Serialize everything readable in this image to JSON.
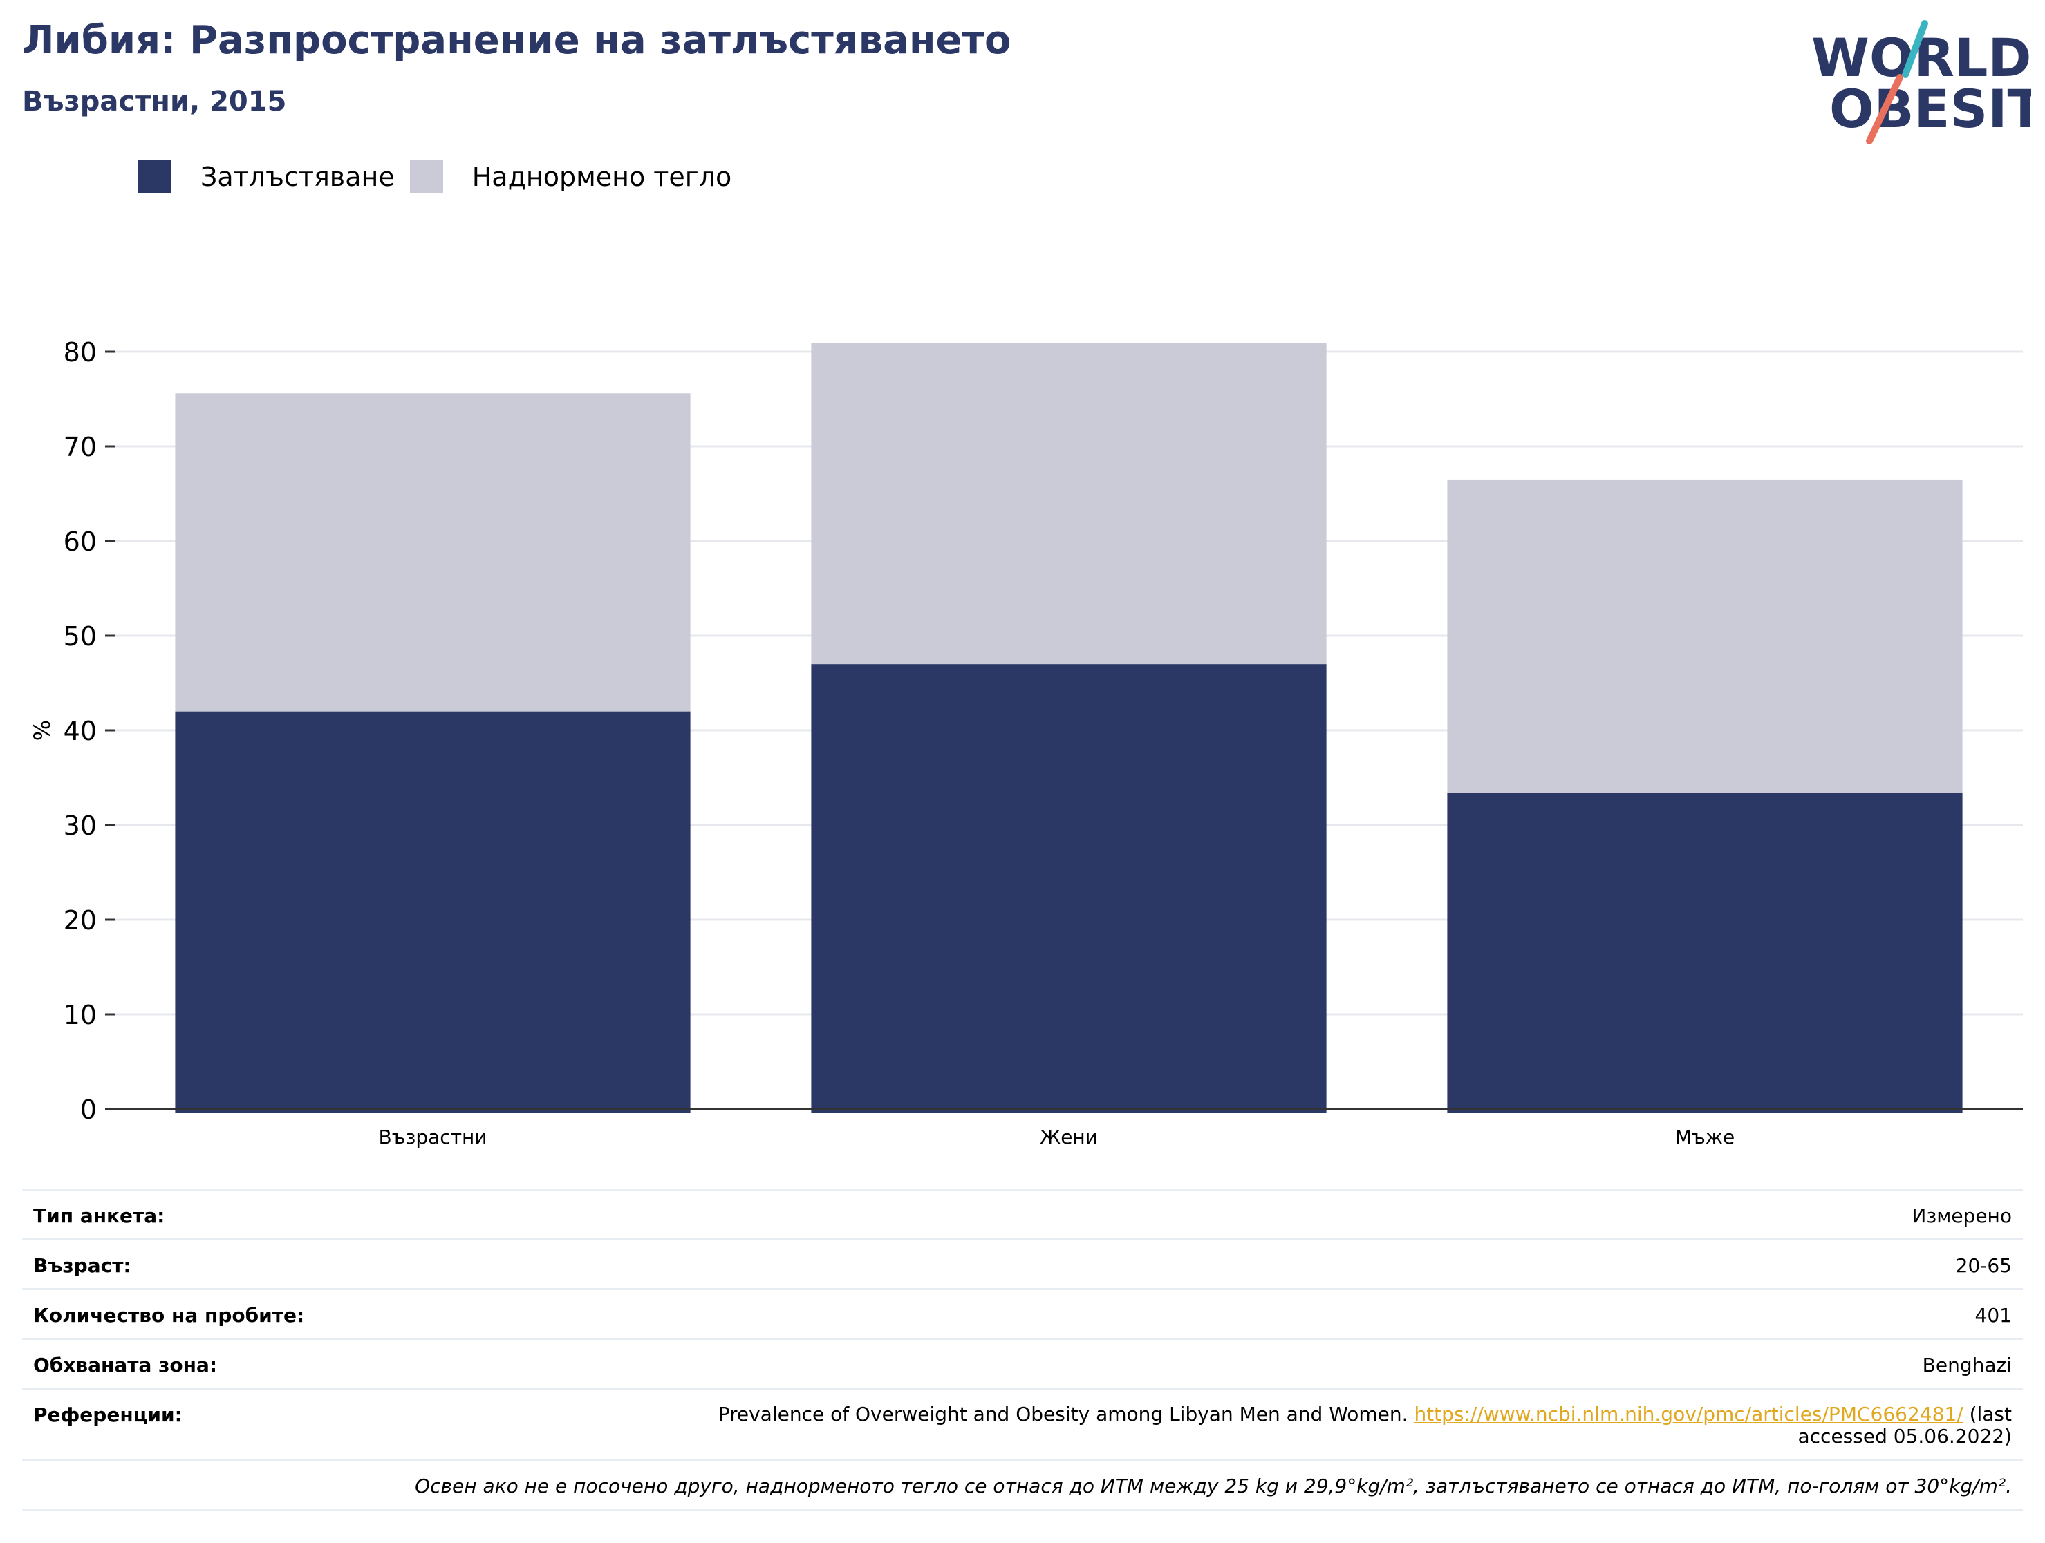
{
  "header": {
    "title": "Либия: Разпространение на затлъстяването",
    "subtitle": "Възрастни, 2015"
  },
  "logo": {
    "line1": "WORLD",
    "line2": "OBESITY"
  },
  "colors": {
    "obesity": "#2b3764",
    "overweight": "#cacbd7",
    "title": "#2b3764",
    "link": "#e0a81f",
    "logo_teal": "#3bb4c1",
    "logo_coral": "#e8705d"
  },
  "chart_data": {
    "type": "bar",
    "stacked": true,
    "categories": [
      "Възрастни",
      "Жени",
      "Мъже"
    ],
    "series": [
      {
        "name": "Затлъстяване",
        "values": [
          42.0,
          47.0,
          33.4
        ]
      },
      {
        "name": "Наднормено тегло",
        "values": [
          33.6,
          33.9,
          33.1
        ]
      }
    ],
    "ylabel": "%",
    "ylim": [
      0,
      80
    ],
    "yticks": [
      0,
      10,
      20,
      30,
      40,
      50,
      60,
      70,
      80
    ],
    "grid": true,
    "legend_position": "top-left"
  },
  "meta": {
    "survey_type": {
      "label": "Тип анкета:",
      "value": "Измерено"
    },
    "age": {
      "label": "Възраст:",
      "value": "20-65"
    },
    "sample_size": {
      "label": "Количество на пробите:",
      "value": "401"
    },
    "area": {
      "label": "Обхваната зона:",
      "value": "Benghazi"
    },
    "references": {
      "label": "Референции:",
      "text_before": "Prevalence of Overweight and Obesity among Libyan Men and Women. ",
      "link": "https://www.ncbi.nlm.nih.gov/pmc/articles/PMC6662481/",
      "text_after": " (last accessed 05.06.2022)"
    },
    "note": "Освен ако не е посочено друго, наднорменото тегло се отнася до ИТМ между 25 kg и 29,9°kg/m², затлъстяването се отнася до ИТМ, по-голям от 30°kg/m²."
  }
}
